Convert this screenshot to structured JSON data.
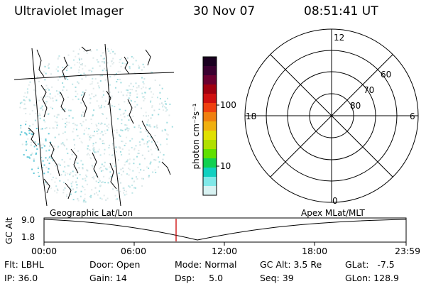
{
  "header": {
    "instrument": "Ultraviolet Imager",
    "date": "30 Nov 07",
    "time": "08:51:41 UT"
  },
  "colorbar": {
    "unit_label": "photon cm⁻²s⁻¹",
    "ticks": [
      "100",
      "10"
    ],
    "colors": [
      "#1a0020",
      "#3a0030",
      "#6a0030",
      "#a00010",
      "#d01010",
      "#f04010",
      "#f08010",
      "#f0b010",
      "#e0e000",
      "#b0e000",
      "#60e000",
      "#10d050",
      "#10d0c0",
      "#80e8e8",
      "#d8f2f2"
    ]
  },
  "polar_plot": {
    "mlt_labels": [
      "12",
      "18",
      "6",
      "0"
    ],
    "lat_labels": [
      "60",
      "70",
      "80"
    ]
  },
  "timeline": {
    "left_title": "Geographic Lat/Lon",
    "right_title": "Apex MLat/MLT",
    "axis_title": "GC Alt",
    "y_ticks": [
      "9.0",
      "1.8"
    ],
    "x_ticks": [
      "00:00",
      "06:00",
      "12:00",
      "18:00",
      "23:59"
    ],
    "marker_color": "#cc0000"
  },
  "info": {
    "flt": "Flt: LBHL",
    "ip": "IP: 36.0",
    "door": "Door: Open",
    "gain": "Gain: 14",
    "mode": "Mode: Normal",
    "dsp": "Dsp:     5.0",
    "gcalt": "GC Alt: 3.5 Re",
    "seq": "Seq: 39",
    "glat": "GLat:   -7.5",
    "glon": "GLon: 128.9"
  }
}
